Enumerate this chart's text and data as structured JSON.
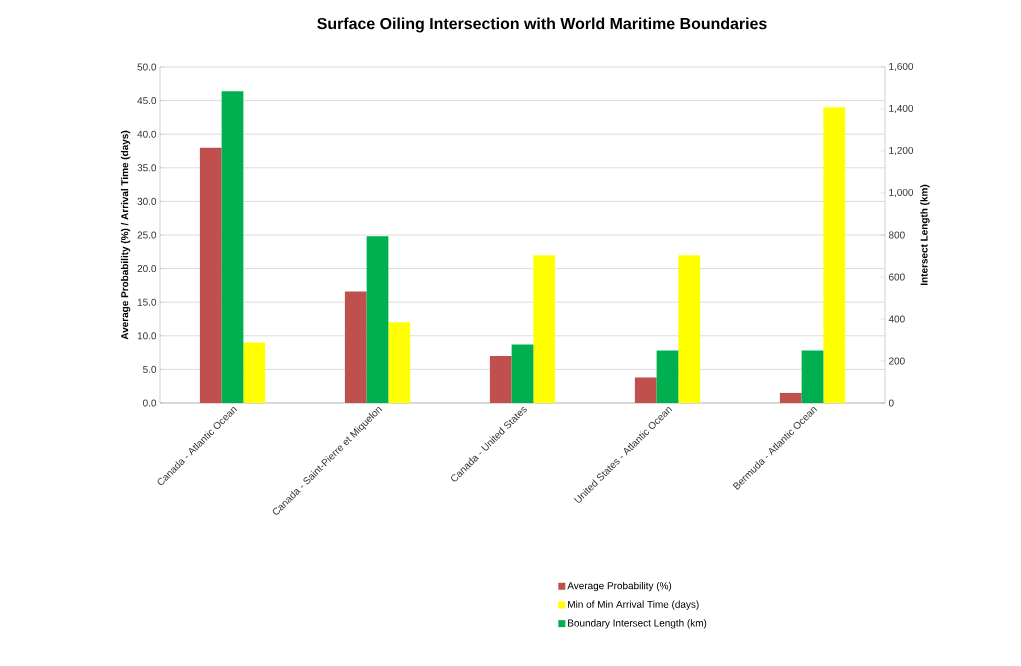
{
  "chart_data": {
    "type": "bar",
    "title": "Surface Oiling Intersection with World Maritime Boundaries",
    "ylabel": "Average Probability (%) / Arrival Time (days)",
    "y2label": "Intersect Length (km)",
    "categories": [
      "Canada - Atlantic Ocean",
      "Canada - Saint-Pierre et Miquelon",
      "Canada - United States",
      "United States - Atlantic Ocean",
      "Bermuda - Atlantic Ocean"
    ],
    "series": [
      {
        "name": "Average  Probability (%)",
        "color": "#c0504d",
        "values": [
          38.0,
          16.6,
          7.0,
          3.8,
          1.5
        ]
      },
      {
        "name": "Boundary Intersect Length (km)",
        "color": "#00b050",
        "axis": "y2",
        "values": [
          1485,
          794,
          278,
          250,
          250
        ]
      },
      {
        "name": "Min of Min Arrival Time (days)",
        "color": "#ffff00",
        "values": [
          9.0,
          12.0,
          22.0,
          22.0,
          44.0
        ]
      }
    ],
    "ylim": [
      0,
      50
    ],
    "yticks": [
      {
        "value": 0,
        "label": "0.0"
      },
      {
        "value": 5,
        "label": "5.0"
      },
      {
        "value": 10,
        "label": "10.0"
      },
      {
        "value": 15,
        "label": "15.0"
      },
      {
        "value": 20,
        "label": "20.0"
      },
      {
        "value": 25,
        "label": "25.0"
      },
      {
        "value": 30,
        "label": "30.0"
      },
      {
        "value": 35,
        "label": "35.0"
      },
      {
        "value": 40,
        "label": "40.0"
      },
      {
        "value": 45,
        "label": "45.0"
      },
      {
        "value": 50,
        "label": "50.0"
      }
    ],
    "y2lim": [
      0,
      1600
    ],
    "y2ticks": [
      0,
      200,
      400,
      600,
      800,
      {
        "value": 1000,
        "label": "1,000"
      },
      {
        "value": 1200,
        "label": "1,200"
      },
      {
        "value": 1400,
        "label": "1,400"
      },
      {
        "value": 1600,
        "label": "1,600"
      }
    ],
    "grid": "y",
    "legend": "bottom"
  }
}
